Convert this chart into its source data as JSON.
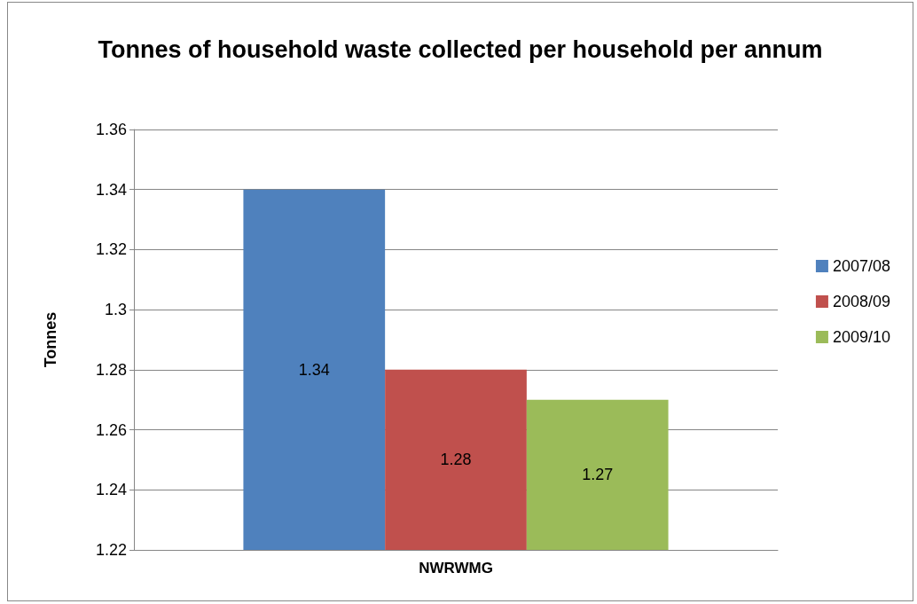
{
  "chart_data": {
    "type": "bar",
    "title": "Tonnes of household waste collected per household per annum",
    "ylabel": "Tonnes",
    "categories": [
      "NWRWMG"
    ],
    "series": [
      {
        "name": "2007/08",
        "color": "#4f81bd",
        "values": [
          1.34
        ]
      },
      {
        "name": "2008/09",
        "color": "#c0504d",
        "values": [
          1.28
        ]
      },
      {
        "name": "2009/10",
        "color": "#9bbb59",
        "values": [
          1.27
        ]
      }
    ],
    "ylim": [
      1.22,
      1.36
    ],
    "yticks": [
      1.22,
      1.24,
      1.26,
      1.28,
      1.3,
      1.32,
      1.34,
      1.36
    ],
    "grid": "y",
    "legend": "right",
    "data_labels": true
  }
}
